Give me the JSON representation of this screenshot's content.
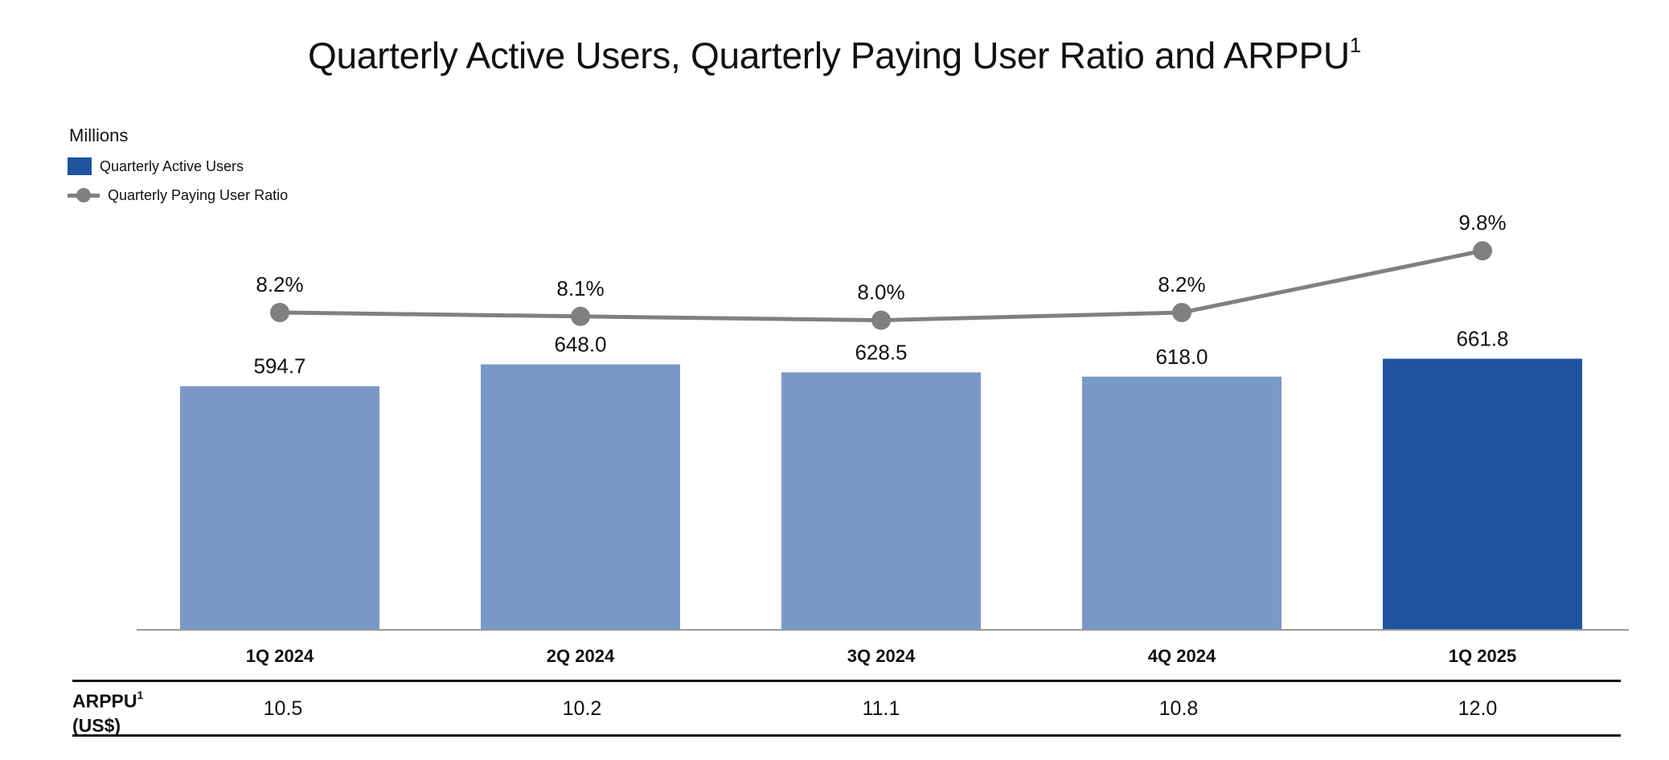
{
  "title": "Quarterly Active Users, Quarterly Paying User Ratio and ARPPU",
  "title_superscript": "1",
  "units_label": "Millions",
  "colors": {
    "bar_light": "#7a99c7",
    "bar_highlight": "#2053a1",
    "line": "#808080",
    "text": "#111111"
  },
  "legend": {
    "bar_label": "Quarterly Active Users",
    "line_label": "Quarterly Paying User Ratio",
    "bar_icon": "square-swatch-icon",
    "line_icon": "line-marker-icon"
  },
  "chart_data": {
    "type": "bar",
    "title": "Quarterly Active Users, Quarterly Paying User Ratio and ARPPU",
    "ylabel": "Millions",
    "xlabel": "",
    "categories": [
      "1Q 2024",
      "2Q 2024",
      "3Q 2024",
      "4Q 2024",
      "1Q 2025"
    ],
    "series": [
      {
        "name": "Quarterly Active Users",
        "type": "bar",
        "values": [
          594.7,
          648.0,
          628.5,
          618.0,
          661.8
        ],
        "labels": [
          "594.7",
          "648.0",
          "628.5",
          "618.0",
          "661.8"
        ],
        "highlight_index": 4
      },
      {
        "name": "Quarterly Paying User Ratio",
        "type": "line",
        "unit": "%",
        "values": [
          8.2,
          8.1,
          8.0,
          8.2,
          9.8
        ],
        "labels": [
          "8.2%",
          "8.1%",
          "8.0%",
          "8.2%",
          "9.8%"
        ]
      }
    ],
    "ylim": [
      0,
      700
    ],
    "grid": false,
    "legend_position": "top-left"
  },
  "arppu": {
    "label_line1": "ARPPU",
    "label_superscript": "1",
    "label_line2": "(US$)",
    "values": [
      "10.5",
      "10.2",
      "11.1",
      "10.8",
      "12.0"
    ]
  }
}
